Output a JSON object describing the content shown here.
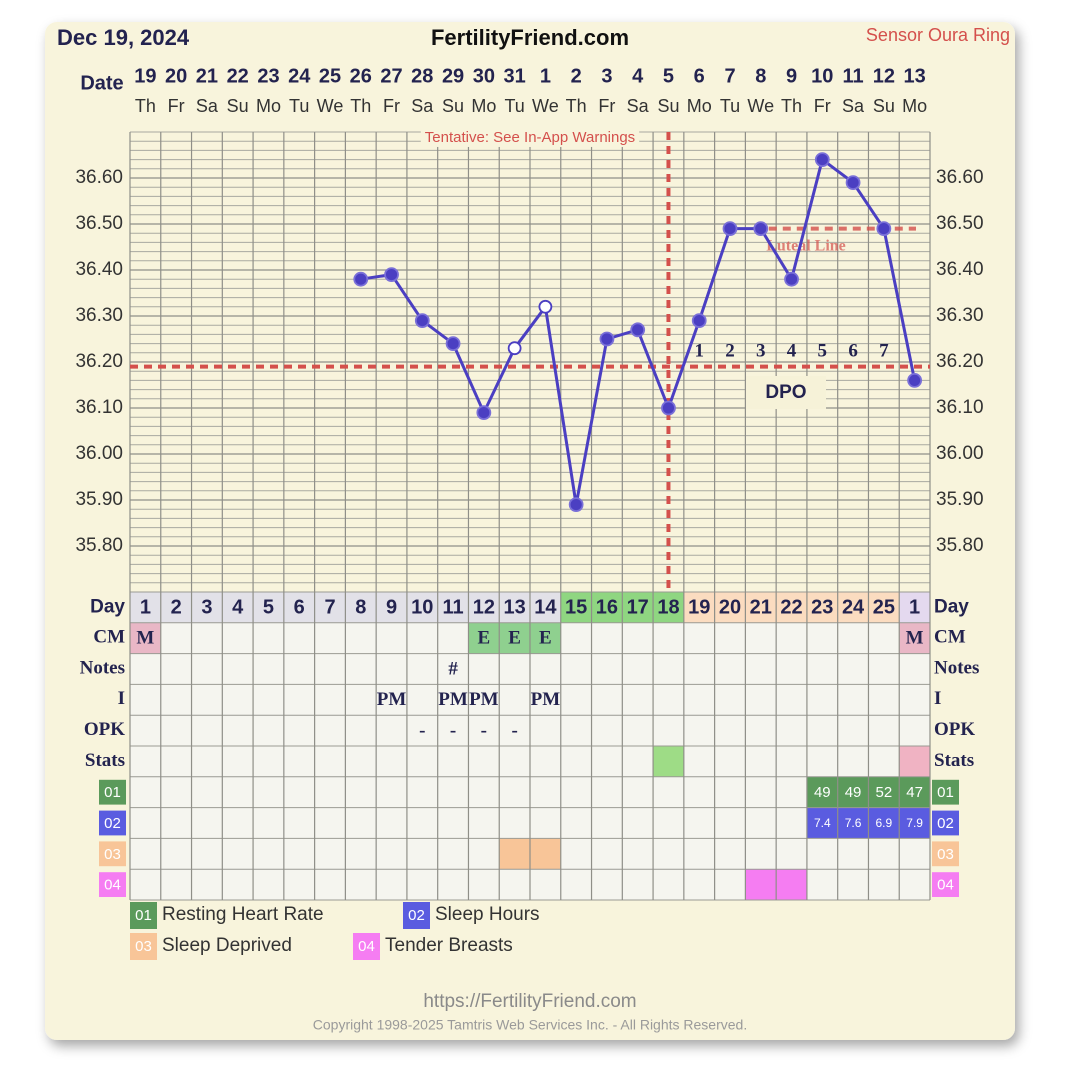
{
  "chart_data": {
    "type": "line",
    "date": "Dec 19, 2024",
    "title": "FertilityFriend.com",
    "source": "Sensor Oura Ring",
    "date_label": "Date",
    "dates": [
      "19",
      "20",
      "21",
      "22",
      "23",
      "24",
      "25",
      "26",
      "27",
      "28",
      "29",
      "30",
      "31",
      "1",
      "2",
      "3",
      "4",
      "5",
      "6",
      "7",
      "8",
      "9",
      "10",
      "11",
      "12",
      "13"
    ],
    "weekdays": [
      "Th",
      "Fr",
      "Sa",
      "Su",
      "Mo",
      "Tu",
      "We",
      "Th",
      "Fr",
      "Sa",
      "Su",
      "Mo",
      "Tu",
      "We",
      "Th",
      "Fr",
      "Sa",
      "Su",
      "Mo",
      "Tu",
      "We",
      "Th",
      "Fr",
      "Sa",
      "Su",
      "Mo"
    ],
    "annotation": "Tentative: See In-App Warnings",
    "ylim": [
      35.7,
      36.7
    ],
    "yticks": [
      {
        "value": 36.6,
        "label": "36.60"
      },
      {
        "value": 36.5,
        "label": "36.50"
      },
      {
        "value": 36.4,
        "label": "36.40"
      },
      {
        "value": 36.3,
        "label": "36.30"
      },
      {
        "value": 36.2,
        "label": "36.20"
      },
      {
        "value": 36.1,
        "label": "36.10"
      },
      {
        "value": 36.0,
        "label": "36.00"
      },
      {
        "value": 35.9,
        "label": "35.90"
      },
      {
        "value": 35.8,
        "label": "35.80"
      }
    ],
    "values": [
      null,
      null,
      null,
      null,
      null,
      null,
      null,
      36.38,
      36.39,
      36.29,
      36.24,
      36.09,
      36.23,
      36.32,
      35.89,
      36.25,
      36.27,
      36.1,
      36.29,
      36.49,
      36.49,
      36.38,
      36.64,
      36.59,
      36.49,
      36.16
    ],
    "open_markers": [
      false,
      false,
      false,
      false,
      false,
      false,
      false,
      false,
      false,
      false,
      false,
      false,
      true,
      true,
      false,
      false,
      false,
      false,
      false,
      false,
      false,
      false,
      false,
      false,
      false,
      false
    ],
    "color": "#4b3fc2",
    "coverline": 36.19,
    "reference_color": "#d4504c",
    "ovulation_day": 18,
    "luteal_line": {
      "label": "Luteal Line",
      "value": 36.49
    },
    "dpo_label": "DPO",
    "dpo": [
      1,
      2,
      3,
      4,
      5,
      6,
      7
    ],
    "day_label": "Day",
    "cycle_days": [
      1,
      2,
      3,
      4,
      5,
      6,
      7,
      8,
      9,
      10,
      11,
      12,
      13,
      14,
      15,
      16,
      17,
      18,
      19,
      20,
      21,
      22,
      23,
      24,
      25,
      1
    ],
    "day_colors": [
      "#e2e1e8",
      "#e2e1e8",
      "#e2e1e8",
      "#e2e1e8",
      "#e2e1e8",
      "#e2e1e8",
      "#e2e1e8",
      "#e2e1e8",
      "#e2e1e8",
      "#e2e1e8",
      "#e2e1e8",
      "#e2e1e8",
      "#e2e1e8",
      "#e2e1e8",
      "#8fd681",
      "#8fd681",
      "#8fd681",
      "#8fd681",
      "#fbdcc0",
      "#fbdcc0",
      "#fbdcc0",
      "#fbdcc0",
      "#fbdcc0",
      "#fbdcc0",
      "#fbdcc0",
      "#e4d9ef"
    ],
    "table_rows": [
      {
        "label": "CM",
        "cells": [
          "M",
          null,
          null,
          null,
          null,
          null,
          null,
          null,
          null,
          null,
          null,
          "E",
          "E",
          "E",
          null,
          null,
          null,
          null,
          null,
          null,
          null,
          null,
          null,
          null,
          null,
          "M"
        ],
        "cell_colors": [
          "#e9b7c6",
          null,
          null,
          null,
          null,
          null,
          null,
          null,
          null,
          null,
          null,
          "#8fd08f",
          "#8fd08f",
          "#8fd08f",
          null,
          null,
          null,
          null,
          null,
          null,
          null,
          null,
          null,
          null,
          null,
          "#e9b7c6"
        ]
      },
      {
        "label": "Notes",
        "cells": [
          null,
          null,
          null,
          null,
          null,
          null,
          null,
          null,
          null,
          null,
          "#",
          null,
          null,
          null,
          null,
          null,
          null,
          null,
          null,
          null,
          null,
          null,
          null,
          null,
          null,
          null
        ]
      },
      {
        "label": "I",
        "cells": [
          null,
          null,
          null,
          null,
          null,
          null,
          null,
          null,
          "PM",
          null,
          "PM",
          "PM",
          null,
          "PM",
          null,
          null,
          null,
          null,
          null,
          null,
          null,
          null,
          null,
          null,
          null,
          null
        ]
      },
      {
        "label": "OPK",
        "cells": [
          null,
          null,
          null,
          null,
          null,
          null,
          null,
          null,
          null,
          "-",
          "-",
          "-",
          "-",
          null,
          null,
          null,
          null,
          null,
          null,
          null,
          null,
          null,
          null,
          null,
          null,
          null
        ]
      },
      {
        "label": "Stats",
        "cell_colors": [
          null,
          null,
          null,
          null,
          null,
          null,
          null,
          null,
          null,
          null,
          null,
          null,
          null,
          null,
          null,
          null,
          null,
          "#9edc86",
          null,
          null,
          null,
          null,
          null,
          null,
          null,
          "#f0b3c3"
        ]
      }
    ],
    "metrics": [
      {
        "code": "01",
        "name": "Resting Heart Rate",
        "color": "#5b9a5b",
        "values": [
          null,
          null,
          null,
          null,
          null,
          null,
          null,
          null,
          null,
          null,
          null,
          null,
          null,
          null,
          null,
          null,
          null,
          null,
          null,
          null,
          null,
          null,
          49,
          49,
          52,
          47
        ]
      },
      {
        "code": "02",
        "name": "Sleep Hours",
        "color": "#5a5ce0",
        "values": [
          null,
          null,
          null,
          null,
          null,
          null,
          null,
          null,
          null,
          null,
          null,
          null,
          null,
          null,
          null,
          null,
          null,
          null,
          null,
          null,
          null,
          null,
          7.4,
          7.6,
          6.9,
          7.9
        ]
      },
      {
        "code": "03",
        "name": "Sleep Deprived",
        "color": "#f8c598",
        "marked": [
          false,
          false,
          false,
          false,
          false,
          false,
          false,
          false,
          false,
          false,
          false,
          false,
          true,
          true,
          false,
          false,
          false,
          false,
          false,
          false,
          false,
          false,
          false,
          false,
          false,
          false
        ]
      },
      {
        "code": "04",
        "name": "Tender Breasts",
        "color": "#f57df2",
        "marked": [
          false,
          false,
          false,
          false,
          false,
          false,
          false,
          false,
          false,
          false,
          false,
          false,
          false,
          false,
          false,
          false,
          false,
          false,
          false,
          false,
          true,
          true,
          false,
          false,
          false,
          false
        ]
      }
    ],
    "footer_url": "https://FertilityFriend.com",
    "copyright": "Copyright 1998-2025 Tamtris Web Services Inc. - All Rights Reserved."
  }
}
